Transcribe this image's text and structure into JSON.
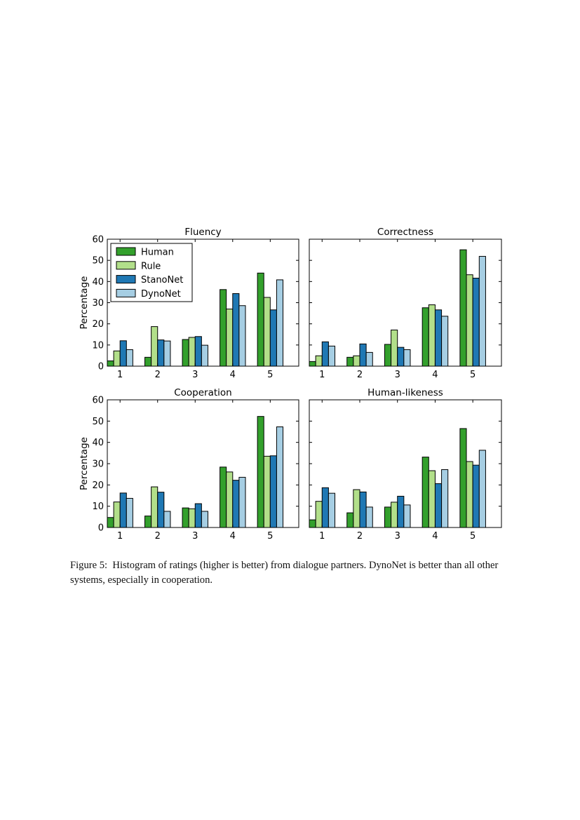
{
  "colors": {
    "Human": "#33a02c",
    "Rule": "#b2df8a",
    "StanoNet": "#1f78b4",
    "DynoNet": "#a6cee3"
  },
  "legend": [
    "Human",
    "Rule",
    "StanoNet",
    "DynoNet"
  ],
  "chart_data": [
    {
      "type": "bar",
      "title": "Fluency",
      "ylabel": "Percentage",
      "ylim": [
        0,
        60
      ],
      "yticks": [
        0,
        10,
        20,
        30,
        40,
        50,
        60
      ],
      "categories": [
        "1",
        "2",
        "3",
        "4",
        "5"
      ],
      "legend_position": "top-left",
      "series": [
        {
          "name": "Human",
          "values": [
            2.5,
            4.2,
            12.6,
            36.2,
            44.0
          ]
        },
        {
          "name": "Rule",
          "values": [
            7.2,
            18.7,
            13.6,
            27.0,
            32.5
          ]
        },
        {
          "name": "StanoNet",
          "values": [
            12.0,
            12.4,
            14.0,
            34.3,
            26.6
          ]
        },
        {
          "name": "DynoNet",
          "values": [
            7.8,
            11.9,
            9.9,
            28.6,
            40.8
          ]
        }
      ]
    },
    {
      "type": "bar",
      "title": "Correctness",
      "ylabel": "",
      "ylim": [
        0,
        60
      ],
      "yticks": [
        0,
        10,
        20,
        30,
        40,
        50,
        60
      ],
      "categories": [
        "1",
        "2",
        "3",
        "4",
        "5"
      ],
      "series": [
        {
          "name": "Human",
          "values": [
            2.2,
            4.2,
            10.3,
            27.6,
            55.0
          ]
        },
        {
          "name": "Rule",
          "values": [
            4.9,
            4.9,
            17.1,
            29.0,
            43.2
          ]
        },
        {
          "name": "StanoNet",
          "values": [
            11.5,
            10.5,
            8.9,
            26.6,
            41.6
          ]
        },
        {
          "name": "DynoNet",
          "values": [
            9.5,
            6.5,
            7.8,
            23.6,
            51.9
          ]
        }
      ]
    },
    {
      "type": "bar",
      "title": "Cooperation",
      "ylabel": "Percentage",
      "ylim": [
        0,
        60
      ],
      "yticks": [
        0,
        10,
        20,
        30,
        40,
        50,
        60
      ],
      "categories": [
        "1",
        "2",
        "3",
        "4",
        "5"
      ],
      "series": [
        {
          "name": "Human",
          "values": [
            4.7,
            5.4,
            9.2,
            28.4,
            52.2
          ]
        },
        {
          "name": "Rule",
          "values": [
            12.0,
            19.1,
            8.8,
            26.1,
            33.5
          ]
        },
        {
          "name": "StanoNet",
          "values": [
            16.2,
            16.6,
            11.2,
            22.2,
            33.7
          ]
        },
        {
          "name": "DynoNet",
          "values": [
            13.7,
            7.6,
            7.6,
            23.6,
            47.3
          ]
        }
      ]
    },
    {
      "type": "bar",
      "title": "Human-likeness",
      "ylabel": "",
      "ylim": [
        0,
        60
      ],
      "yticks": [
        0,
        10,
        20,
        30,
        40,
        50,
        60
      ],
      "categories": [
        "1",
        "2",
        "3",
        "4",
        "5"
      ],
      "series": [
        {
          "name": "Human",
          "values": [
            3.6,
            6.9,
            9.6,
            33.1,
            46.5
          ]
        },
        {
          "name": "Rule",
          "values": [
            12.3,
            17.8,
            11.9,
            26.7,
            31.0
          ]
        },
        {
          "name": "StanoNet",
          "values": [
            18.7,
            16.7,
            14.7,
            20.6,
            29.3
          ]
        },
        {
          "name": "DynoNet",
          "values": [
            16.1,
            9.6,
            10.6,
            27.2,
            36.3
          ]
        }
      ]
    }
  ],
  "caption": {
    "label": "Figure 5:",
    "text": "Histogram of ratings (higher is better) from dialogue partners. DynoNet is better than all other systems, especially in cooperation."
  }
}
